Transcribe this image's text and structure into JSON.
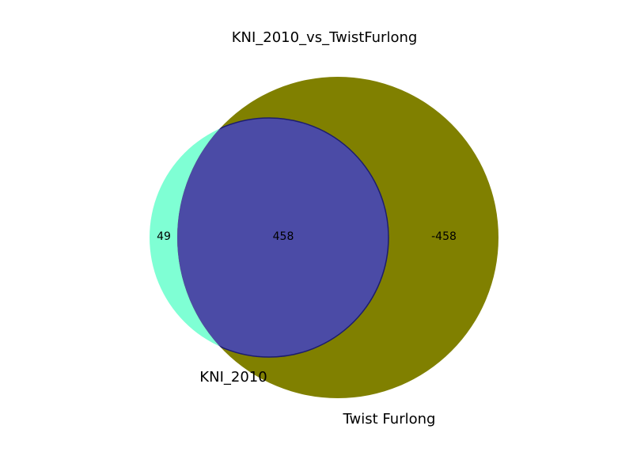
{
  "chart_data": {
    "type": "venn",
    "title": "KNI_2010_vs_TwistFurlong",
    "sets": [
      {
        "name": "KNI_2010",
        "color": "#7fffd4"
      },
      {
        "name": "Twist Furlong",
        "color": "#808000"
      }
    ],
    "intersection_color": "#4b4ba6",
    "outline_color": "#1c1c6e",
    "regions": [
      {
        "id": "only_a",
        "value": "49"
      },
      {
        "id": "a_and_b",
        "value": "458"
      },
      {
        "id": "only_b",
        "value": "-458"
      }
    ]
  }
}
